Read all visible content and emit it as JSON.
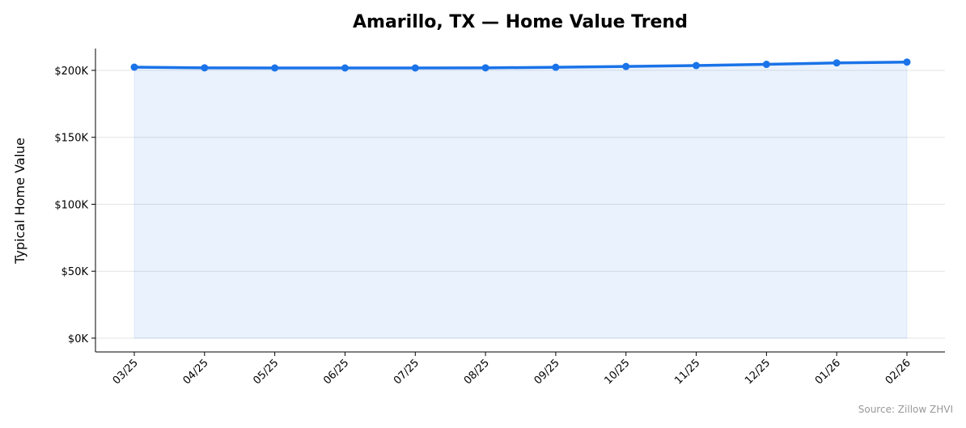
{
  "chart_data": {
    "type": "line",
    "title": "Amarillo, TX — Home Value Trend",
    "y_label": "Typical Home Value",
    "source": "Source: Zillow ZHVI",
    "categories": [
      "03/25",
      "04/25",
      "05/25",
      "06/25",
      "07/25",
      "08/25",
      "09/25",
      "10/25",
      "11/25",
      "12/25",
      "01/26",
      "02/26"
    ],
    "values": [
      202400,
      201900,
      201800,
      201800,
      201800,
      201900,
      202300,
      202900,
      203600,
      204500,
      205600,
      206200
    ],
    "color": "#1a73e8",
    "fill": true,
    "ylim": [
      -10300,
      216300
    ],
    "yticks": [
      {
        "value": 0,
        "label": "$0K"
      },
      {
        "value": 50000,
        "label": "$50K"
      },
      {
        "value": 100000,
        "label": "$100K"
      },
      {
        "value": 150000,
        "label": "$150K"
      },
      {
        "value": 200000,
        "label": "$200K"
      }
    ],
    "grid": true
  }
}
